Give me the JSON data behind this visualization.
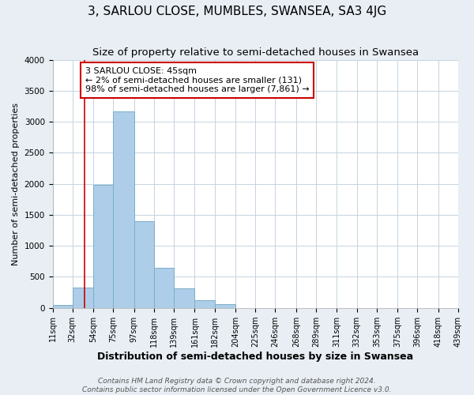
{
  "title": "3, SARLOU CLOSE, MUMBLES, SWANSEA, SA3 4JG",
  "subtitle": "Size of property relative to semi-detached houses in Swansea",
  "xlabel": "Distribution of semi-detached houses by size in Swansea",
  "ylabel": "Number of semi-detached properties",
  "bin_edges": [
    11,
    32,
    54,
    75,
    97,
    118,
    139,
    161,
    182,
    204,
    225,
    246,
    268,
    289,
    311,
    332,
    353,
    375,
    396,
    418,
    439
  ],
  "bin_counts": [
    50,
    325,
    1980,
    3170,
    1400,
    640,
    310,
    130,
    60,
    0,
    0,
    0,
    0,
    0,
    0,
    0,
    0,
    0,
    0,
    0
  ],
  "bar_color": "#aecde8",
  "bar_edge_color": "#7aafc8",
  "property_line_x": 45,
  "property_line_color": "#cc0000",
  "annotation_text": "3 SARLOU CLOSE: 45sqm\n← 2% of semi-detached houses are smaller (131)\n98% of semi-detached houses are larger (7,861) →",
  "annotation_box_color": "#cc0000",
  "ylim": [
    0,
    4000
  ],
  "xlim": [
    11,
    439
  ],
  "tick_labels": [
    "11sqm",
    "32sqm",
    "54sqm",
    "75sqm",
    "97sqm",
    "118sqm",
    "139sqm",
    "161sqm",
    "182sqm",
    "204sqm",
    "225sqm",
    "246sqm",
    "268sqm",
    "289sqm",
    "311sqm",
    "332sqm",
    "353sqm",
    "375sqm",
    "396sqm",
    "418sqm",
    "439sqm"
  ],
  "footer_line1": "Contains HM Land Registry data © Crown copyright and database right 2024.",
  "footer_line2": "Contains public sector information licensed under the Open Government Licence v3.0.",
  "background_color": "#e8eef4",
  "plot_background_color": "#ffffff",
  "grid_color": "#c5d3e0",
  "title_fontsize": 11,
  "subtitle_fontsize": 9.5,
  "xlabel_fontsize": 9,
  "ylabel_fontsize": 8,
  "tick_fontsize": 7,
  "footer_fontsize": 6.5
}
